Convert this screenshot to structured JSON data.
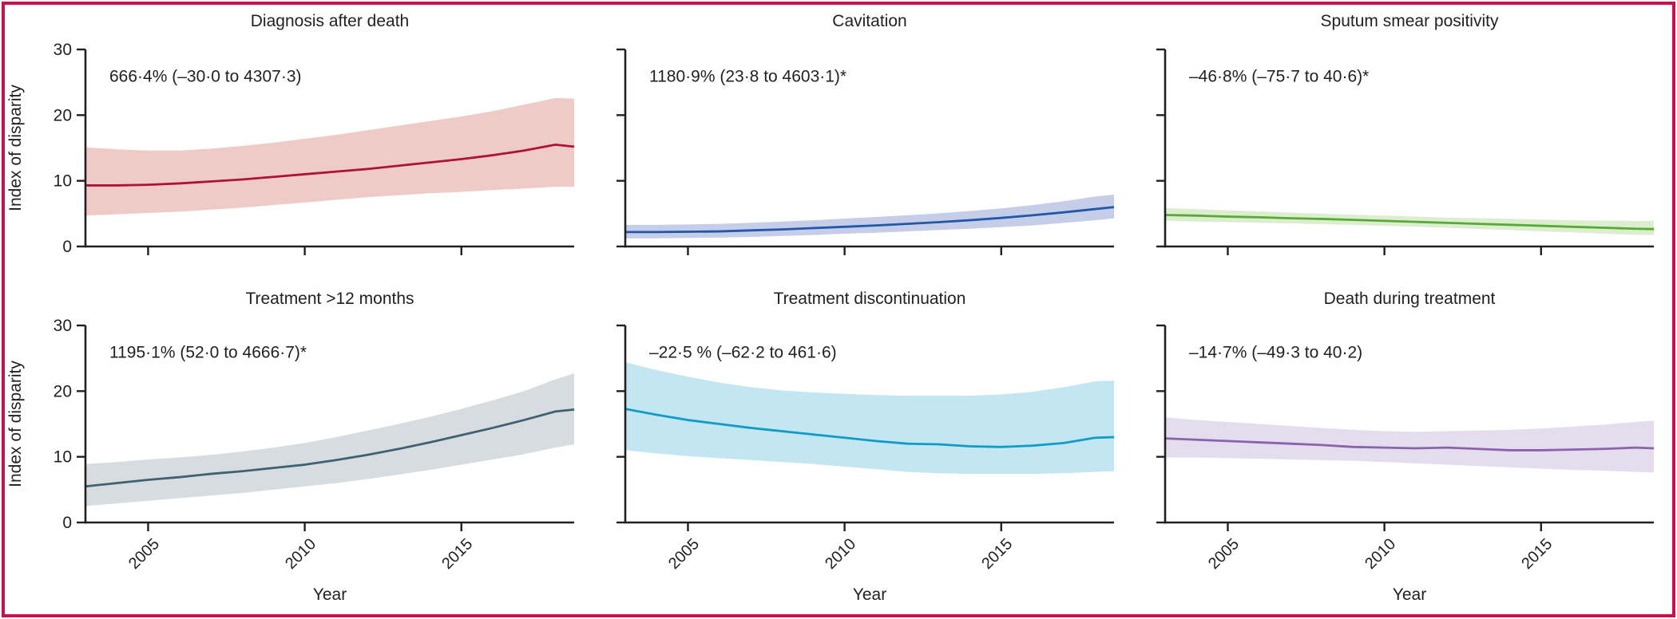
{
  "figure": {
    "frame_color": "#C8104A",
    "text_color": "#231F20",
    "axis_color": "#231F20",
    "y_axis_label": "Index of disparity",
    "x_axis_label": "Year",
    "y_ticks": [
      0,
      10,
      20,
      30
    ],
    "x_ticks": [
      2005,
      2010,
      2015
    ],
    "ylim": [
      0,
      30
    ],
    "xlim": [
      2003,
      2018.6
    ],
    "years": [
      2003,
      2004,
      2005,
      2006,
      2007,
      2008,
      2009,
      2010,
      2011,
      2012,
      2013,
      2014,
      2015,
      2016,
      2017,
      2018,
      2018.6
    ]
  },
  "chart_data": [
    {
      "type": "line",
      "id": "diagnosis-after-death",
      "title": "Diagnosis after death",
      "annotation": "666·4% (–30·0 to 4307·3)",
      "line_color": "#AF1238",
      "band_color": "#EFCBC7",
      "row": 0,
      "col": 0,
      "line": [
        9.3,
        9.3,
        9.4,
        9.6,
        9.9,
        10.2,
        10.6,
        11.0,
        11.4,
        11.8,
        12.3,
        12.8,
        13.3,
        13.9,
        14.6,
        15.5,
        15.2
      ],
      "lower": [
        4.7,
        4.9,
        5.1,
        5.3,
        5.6,
        5.9,
        6.3,
        6.7,
        7.1,
        7.5,
        7.8,
        8.1,
        8.3,
        8.6,
        8.8,
        9.1,
        9.1
      ],
      "upper": [
        15.1,
        14.8,
        14.6,
        14.6,
        14.9,
        15.3,
        15.8,
        16.4,
        17.0,
        17.7,
        18.4,
        19.1,
        19.8,
        20.6,
        21.6,
        22.6,
        22.5
      ]
    },
    {
      "type": "line",
      "id": "cavitation",
      "title": "Cavitation",
      "annotation": "1180·9% (23·8 to 4603·1)*",
      "line_color": "#2158A7",
      "band_color": "#C6CDE8",
      "row": 0,
      "col": 1,
      "line": [
        2.2,
        2.2,
        2.25,
        2.3,
        2.45,
        2.6,
        2.8,
        3.0,
        3.2,
        3.45,
        3.7,
        4.0,
        4.35,
        4.75,
        5.2,
        5.7,
        6.0
      ],
      "lower": [
        1.25,
        1.25,
        1.3,
        1.35,
        1.45,
        1.6,
        1.75,
        1.95,
        2.1,
        2.3,
        2.5,
        2.7,
        2.95,
        3.2,
        3.6,
        4.0,
        4.3
      ],
      "upper": [
        3.3,
        3.3,
        3.35,
        3.45,
        3.6,
        3.8,
        4.0,
        4.25,
        4.5,
        4.75,
        5.05,
        5.4,
        5.8,
        6.3,
        6.9,
        7.6,
        7.9
      ]
    },
    {
      "type": "line",
      "id": "sputum-smear-positivity",
      "title": "Sputum smear positivity",
      "annotation": "–46·8% (–75·7 to 40·6)*",
      "line_color": "#55AB34",
      "band_color": "#DCEDD0",
      "row": 0,
      "col": 2,
      "line": [
        4.8,
        4.7,
        4.55,
        4.45,
        4.3,
        4.2,
        4.05,
        3.9,
        3.75,
        3.6,
        3.45,
        3.3,
        3.15,
        3.0,
        2.85,
        2.7,
        2.65
      ],
      "lower": [
        3.9,
        3.8,
        3.7,
        3.6,
        3.5,
        3.4,
        3.3,
        3.15,
        3.0,
        2.85,
        2.65,
        2.5,
        2.3,
        2.15,
        1.95,
        1.8,
        1.75
      ],
      "upper": [
        5.85,
        5.7,
        5.5,
        5.35,
        5.15,
        5.0,
        4.85,
        4.7,
        4.55,
        4.4,
        4.3,
        4.2,
        4.1,
        4.0,
        3.95,
        3.9,
        3.9
      ]
    },
    {
      "type": "line",
      "id": "treatment-gt-12-months",
      "title": "Treatment >12 months",
      "annotation": "1195·1% (52·0 to 4666·7)*",
      "line_color": "#3E6271",
      "band_color": "#D6DCE0",
      "row": 1,
      "col": 0,
      "line": [
        5.5,
        6.0,
        6.5,
        6.9,
        7.4,
        7.8,
        8.3,
        8.8,
        9.5,
        10.3,
        11.2,
        12.2,
        13.3,
        14.4,
        15.6,
        16.9,
        17.2
      ],
      "lower": [
        2.5,
        2.9,
        3.3,
        3.7,
        4.1,
        4.5,
        5.0,
        5.5,
        6.0,
        6.6,
        7.3,
        8.0,
        8.8,
        9.6,
        10.4,
        11.4,
        11.9
      ],
      "upper": [
        8.9,
        9.2,
        9.6,
        9.9,
        10.3,
        10.8,
        11.4,
        12.1,
        13.0,
        14.0,
        15.0,
        16.1,
        17.3,
        18.6,
        20.0,
        21.8,
        22.7
      ]
    },
    {
      "type": "line",
      "id": "treatment-discontinuation",
      "title": "Treatment discontinuation",
      "annotation": "–22·5 % (–62·2 to 461·6)",
      "line_color": "#0E9DC6",
      "band_color": "#C4E6F2",
      "row": 1,
      "col": 1,
      "line": [
        17.3,
        16.4,
        15.6,
        15.0,
        14.4,
        13.9,
        13.4,
        12.9,
        12.4,
        12.0,
        11.9,
        11.6,
        11.5,
        11.7,
        12.1,
        12.9,
        13.0
      ],
      "lower": [
        11.0,
        10.5,
        10.1,
        9.8,
        9.5,
        9.2,
        8.9,
        8.5,
        8.1,
        7.7,
        7.5,
        7.4,
        7.4,
        7.4,
        7.5,
        7.7,
        7.8
      ],
      "upper": [
        24.4,
        23.2,
        22.2,
        21.3,
        20.6,
        20.1,
        19.8,
        19.6,
        19.4,
        19.3,
        19.3,
        19.3,
        19.5,
        19.9,
        20.6,
        21.5,
        21.6
      ]
    },
    {
      "type": "line",
      "id": "death-during-treatment",
      "title": "Death during treatment",
      "annotation": "–14·7% (–49·3 to 40·2)",
      "line_color": "#8A62AE",
      "band_color": "#E4DDEE",
      "row": 1,
      "col": 2,
      "line": [
        12.8,
        12.6,
        12.4,
        12.2,
        12.0,
        11.8,
        11.5,
        11.4,
        11.3,
        11.4,
        11.2,
        11.0,
        11.0,
        11.1,
        11.2,
        11.4,
        11.3
      ],
      "lower": [
        9.9,
        9.9,
        9.8,
        9.7,
        9.6,
        9.5,
        9.4,
        9.2,
        9.0,
        8.8,
        8.6,
        8.4,
        8.2,
        8.0,
        7.9,
        7.7,
        7.6
      ],
      "upper": [
        16.0,
        15.6,
        15.3,
        15.0,
        14.7,
        14.4,
        14.1,
        13.9,
        13.8,
        13.9,
        14.0,
        14.1,
        14.3,
        14.6,
        14.9,
        15.3,
        15.5
      ]
    }
  ]
}
